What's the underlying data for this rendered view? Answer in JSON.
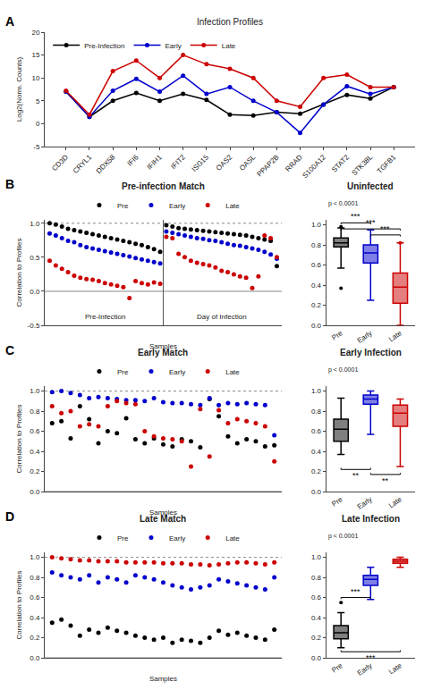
{
  "chart_data": [
    {
      "type": "line",
      "title": "Infection Profiles",
      "ylabel": "Log2(Norm. Counts)",
      "categories": [
        "CD3D",
        "CRYL1",
        "DDX58",
        "IFI6",
        "IFIH1",
        "IFIT2",
        "ISG15",
        "OAS2",
        "OASL",
        "PPAP2B",
        "RRAD",
        "S100A12",
        "STAT2",
        "STK38L",
        "TGFB1"
      ],
      "series": [
        {
          "name": "Pre-Infection",
          "color": "#000000",
          "values": [
            7.0,
            1.5,
            5.0,
            6.7,
            5.0,
            6.5,
            5.2,
            2.0,
            1.8,
            2.5,
            2.2,
            4.2,
            6.3,
            5.5,
            8.0
          ]
        },
        {
          "name": "Early",
          "color": "#0000cc",
          "values": [
            7.0,
            1.5,
            7.2,
            9.8,
            7.0,
            10.5,
            6.5,
            8.0,
            5.0,
            2.5,
            -2.0,
            4.2,
            8.2,
            6.5,
            8.0
          ]
        },
        {
          "name": "Late",
          "color": "#cc0000",
          "values": [
            7.2,
            2.0,
            11.5,
            13.8,
            10.0,
            15.0,
            13.0,
            12.0,
            10.0,
            5.0,
            3.7,
            10.0,
            10.7,
            8.0,
            8.0
          ]
        }
      ],
      "ylim": [
        -5,
        20
      ],
      "yticks": [
        -5,
        0,
        5,
        10,
        15,
        20
      ],
      "marker": "circle",
      "legend": "upper left",
      "grid": false,
      "annotations": [
        {
          "text": "A"
        }
      ]
    },
    {
      "type": "scatter",
      "title": "Pre-infection Match",
      "xlabel": "Samples",
      "ylabel": "Correlation to Profiles",
      "series": [
        {
          "name": "Pre",
          "color": "#000000",
          "values": [
            1.0,
            0.98,
            0.95,
            0.92,
            0.9,
            0.88,
            0.86,
            0.84,
            0.82,
            0.8,
            0.78,
            0.76,
            0.74,
            0.72,
            0.7,
            0.68,
            0.65,
            0.62,
            0.58,
            0.97,
            0.95,
            0.93,
            0.92,
            0.91,
            0.9,
            0.89,
            0.88,
            0.87,
            0.86,
            0.85,
            0.84,
            0.83,
            0.82,
            0.8,
            0.78,
            0.76,
            0.74,
            0.37
          ]
        },
        {
          "name": "Early",
          "color": "#0000cc",
          "values": [
            0.85,
            0.82,
            0.78,
            0.74,
            0.72,
            0.68,
            0.65,
            0.63,
            0.61,
            0.59,
            0.57,
            0.55,
            0.53,
            0.51,
            0.49,
            0.47,
            0.45,
            0.43,
            0.41,
            0.88,
            0.86,
            0.84,
            0.82,
            0.8,
            0.78,
            0.77,
            0.75,
            0.74,
            0.72,
            0.7,
            0.68,
            0.67,
            0.65,
            0.63,
            0.61,
            0.58,
            0.54,
            0.48
          ]
        },
        {
          "name": "Late",
          "color": "#cc0000",
          "values": [
            0.45,
            0.38,
            0.33,
            0.28,
            0.23,
            0.2,
            0.18,
            0.17,
            0.15,
            0.12,
            0.1,
            0.08,
            0.06,
            -0.1,
            0.15,
            0.12,
            0.1,
            0.13,
            0.11,
            0.8,
            0.78,
            0.55,
            0.5,
            0.45,
            0.42,
            0.4,
            0.38,
            0.35,
            0.3,
            0.28,
            0.25,
            0.22,
            0.2,
            0.05,
            0.22,
            0.82,
            0.78,
            0.5
          ]
        }
      ],
      "sections": [
        {
          "label": "Pre-Infection",
          "size": 19
        },
        {
          "label": "Day of Infection",
          "size": 19
        }
      ],
      "reference_lines": [
        {
          "y": 1.0,
          "line_style": "dotted"
        },
        {
          "y": 0.0,
          "line_style": "solid"
        }
      ],
      "ylim": [
        -0.5,
        1.05
      ],
      "yticks": [
        -0.5,
        {
          "value": 0.0,
          "label": "0.0"
        },
        0.5,
        {
          "value": 1.0,
          "label": "1.0"
        }
      ],
      "tick_labels": "y",
      "marker": "circle",
      "legend": "upper center",
      "grid": false,
      "annotations": [
        {
          "text": "B"
        }
      ]
    },
    {
      "type": "box",
      "title": "Uninfected",
      "categories": [
        "Pre",
        "Early",
        "Late"
      ],
      "colors": [
        "#000000",
        "#0000cc",
        "#cc0000"
      ],
      "boxes": [
        {
          "q1": 0.78,
          "median": 0.82,
          "q3": 0.87,
          "whislo": 0.57,
          "whishi": 0.97,
          "fliers_lo": [
            0.37
          ],
          "fliers_hi": [
            0.98
          ]
        },
        {
          "q1": 0.62,
          "median": 0.72,
          "q3": 0.8,
          "whislo": 0.25,
          "whishi": 0.95,
          "fliers_lo": [],
          "fliers_hi": []
        },
        {
          "q1": 0.22,
          "median": 0.38,
          "q3": 0.52,
          "whislo": 0.0,
          "whishi": 0.82,
          "fliers_lo": [],
          "fliers_hi": [
            0.82
          ]
        }
      ],
      "brackets": [
        {
          "x0": "Pre",
          "x1": "Early",
          "y": 1.02,
          "text": "***",
          "below": false
        },
        {
          "x0": "Pre",
          "x1": "Late",
          "y": 0.96,
          "text": "***",
          "below": false
        },
        {
          "x0": "Early",
          "x1": "Late",
          "y": 0.9,
          "text": "***",
          "below": false
        }
      ],
      "ylim": [
        0.0,
        1.05
      ],
      "yticks": [
        {
          "value": 0.0,
          "label": "0.0"
        },
        0.2,
        0.4,
        0.6,
        0.8,
        {
          "value": 1.0,
          "label": "1.0"
        }
      ],
      "grid": false,
      "annotations": [
        {
          "text": "p < 0.0001"
        }
      ]
    },
    {
      "type": "scatter",
      "title": "Early Match",
      "xlabel": "Samples",
      "ylabel": "Correlation to Profiles",
      "series": [
        {
          "name": "Pre",
          "color": "#000000",
          "values": [
            0.68,
            0.7,
            0.53,
            0.85,
            0.72,
            0.48,
            0.6,
            0.58,
            0.73,
            0.52,
            0.48,
            0.53,
            0.47,
            0.45,
            0.52,
            0.5,
            0.44,
            0.92,
            0.75,
            0.55,
            0.48,
            0.52,
            0.5,
            0.45,
            0.46
          ]
        },
        {
          "name": "Early",
          "color": "#0000cc",
          "values": [
            0.99,
            1.0,
            0.98,
            0.96,
            0.93,
            0.94,
            0.93,
            0.92,
            0.91,
            0.91,
            0.9,
            0.93,
            0.89,
            0.88,
            0.88,
            0.87,
            0.86,
            0.93,
            0.86,
            0.88,
            0.87,
            0.88,
            0.87,
            0.86,
            0.56
          ]
        },
        {
          "name": "Late",
          "color": "#cc0000",
          "values": [
            0.85,
            0.78,
            0.8,
            0.65,
            0.67,
            0.65,
            0.85,
            0.9,
            0.88,
            0.87,
            0.6,
            0.55,
            0.53,
            0.52,
            0.5,
            0.25,
            0.82,
            0.35,
            0.81,
            0.68,
            0.72,
            0.7,
            0.68,
            0.65,
            0.3
          ]
        }
      ],
      "reference_lines": [
        {
          "y": 1.0,
          "line_style": "dotted"
        },
        {
          "y": 0.0,
          "line_style": "solid"
        }
      ],
      "ylim": [
        0.0,
        1.05
      ],
      "yticks": [
        {
          "value": 0.0,
          "label": "0.0"
        },
        0.2,
        0.4,
        0.6,
        0.8,
        {
          "value": 1.0,
          "label": "1.0"
        }
      ],
      "tick_labels": "y",
      "marker": "circle",
      "legend": "upper center",
      "grid": false,
      "annotations": [
        {
          "text": "C"
        }
      ]
    },
    {
      "type": "box",
      "title": "Early Infection",
      "categories": [
        "Pre",
        "Early",
        "Late"
      ],
      "colors": [
        "#000000",
        "#0000cc",
        "#cc0000"
      ],
      "boxes": [
        {
          "q1": 0.5,
          "median": 0.62,
          "q3": 0.72,
          "whislo": 0.37,
          "whishi": 0.93,
          "fliers_lo": [],
          "fliers_hi": []
        },
        {
          "q1": 0.87,
          "median": 0.92,
          "q3": 0.96,
          "whislo": 0.57,
          "whishi": 1.0,
          "fliers_lo": [],
          "fliers_hi": []
        },
        {
          "q1": 0.65,
          "median": 0.78,
          "q3": 0.86,
          "whislo": 0.25,
          "whishi": 0.92,
          "fliers_lo": [],
          "fliers_hi": []
        }
      ],
      "brackets": [
        {
          "x0": "Pre",
          "x1": "Early",
          "y": 0.22,
          "text": "**",
          "below": true
        },
        {
          "x0": "Early",
          "x1": "Late",
          "y": 0.17,
          "text": "**",
          "below": true
        }
      ],
      "ylim": [
        0.0,
        1.05
      ],
      "yticks": [
        {
          "value": 0.0,
          "label": "0.0"
        },
        0.2,
        0.4,
        0.6,
        0.8,
        {
          "value": 1.0,
          "label": "1.0"
        }
      ],
      "grid": false,
      "annotations": [
        {
          "text": "p < 0.0001"
        }
      ]
    },
    {
      "type": "scatter",
      "title": "Late Match",
      "xlabel": "Samples",
      "ylabel": "Correlation to Profiles",
      "series": [
        {
          "name": "Pre",
          "color": "#000000",
          "values": [
            0.35,
            0.38,
            0.32,
            0.22,
            0.28,
            0.25,
            0.3,
            0.27,
            0.25,
            0.22,
            0.2,
            0.18,
            0.2,
            0.15,
            0.18,
            0.17,
            0.15,
            0.2,
            0.27,
            0.23,
            0.25,
            0.22,
            0.2,
            0.18,
            0.28
          ]
        },
        {
          "name": "Early",
          "color": "#0000cc",
          "values": [
            0.85,
            0.82,
            0.8,
            0.78,
            0.82,
            0.75,
            0.8,
            0.78,
            0.75,
            0.82,
            0.8,
            0.78,
            0.75,
            0.72,
            0.7,
            0.68,
            0.7,
            0.72,
            0.78,
            0.76,
            0.74,
            0.72,
            0.7,
            0.68,
            0.8
          ]
        },
        {
          "name": "Late",
          "color": "#cc0000",
          "values": [
            1.0,
            0.99,
            0.98,
            0.97,
            0.97,
            0.96,
            0.96,
            0.96,
            0.95,
            0.95,
            0.95,
            0.95,
            0.94,
            0.94,
            0.94,
            0.93,
            0.93,
            0.92,
            0.93,
            0.94,
            0.95,
            0.95,
            0.94,
            0.93,
            0.95
          ]
        }
      ],
      "reference_lines": [
        {
          "y": 1.0,
          "line_style": "dotted"
        },
        {
          "y": 0.0,
          "line_style": "solid"
        }
      ],
      "ylim": [
        0.0,
        1.05
      ],
      "yticks": [
        {
          "value": 0.0,
          "label": "0.0"
        },
        0.2,
        0.4,
        0.6,
        0.8,
        {
          "value": 1.0,
          "label": "1.0"
        }
      ],
      "tick_labels": "y",
      "marker": "circle",
      "legend": "upper center",
      "grid": false,
      "annotations": [
        {
          "text": "D"
        }
      ]
    },
    {
      "type": "box",
      "title": "Late Infection",
      "categories": [
        "Pre",
        "Early",
        "Late"
      ],
      "colors": [
        "#000000",
        "#0000cc",
        "#cc0000"
      ],
      "boxes": [
        {
          "q1": 0.19,
          "median": 0.25,
          "q3": 0.32,
          "whislo": 0.1,
          "whishi": 0.45,
          "fliers_lo": [],
          "fliers_hi": [
            0.55
          ]
        },
        {
          "q1": 0.72,
          "median": 0.78,
          "q3": 0.82,
          "whislo": 0.58,
          "whishi": 0.9,
          "fliers_lo": [],
          "fliers_hi": []
        },
        {
          "q1": 0.94,
          "median": 0.96,
          "q3": 0.98,
          "whislo": 0.9,
          "whishi": 1.0,
          "fliers_lo": [],
          "fliers_hi": []
        }
      ],
      "brackets": [
        {
          "x0": "Pre",
          "x1": "Early",
          "y": 0.6,
          "text": "***",
          "below": false
        },
        {
          "x0": "Pre",
          "x1": "Late",
          "y": 0.06,
          "text": "***",
          "below": true
        }
      ],
      "ylim": [
        0.0,
        1.05
      ],
      "yticks": [
        {
          "value": 0.0,
          "label": "0.0"
        },
        0.2,
        0.4,
        0.6,
        0.8,
        {
          "value": 1.0,
          "label": "1.0"
        }
      ],
      "grid": false,
      "annotations": [
        {
          "text": "p < 0.0001"
        }
      ]
    }
  ]
}
